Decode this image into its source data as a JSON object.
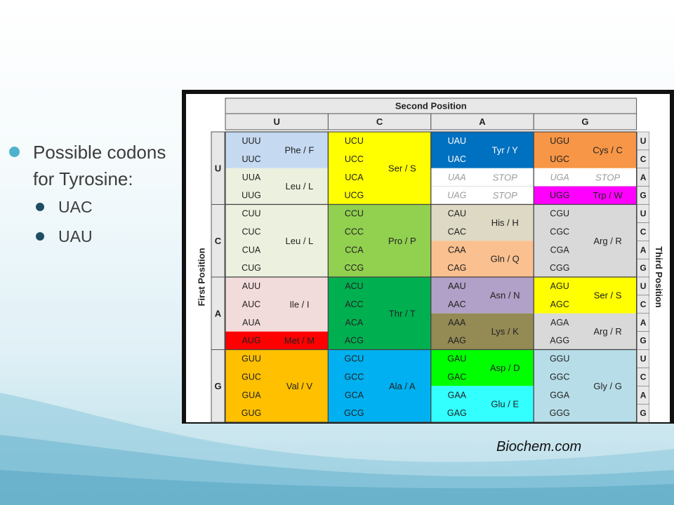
{
  "bullets": {
    "main": "Possible codons for Tyrosine:",
    "subs": [
      "UAC",
      "UAU"
    ]
  },
  "credit": "Biochem.com",
  "table": {
    "second_position_label": "Second Position",
    "first_position_label": "First Position",
    "third_position_label": "Third Position",
    "bases": [
      "U",
      "C",
      "A",
      "G"
    ],
    "colors": {
      "light_blue": "#c5d9f1",
      "pale_green": "#ebf1de",
      "pale_pink": "#f2dcdb",
      "red": "#ff0000",
      "orange_yellow": "#ffc000",
      "yellow": "#ffff00",
      "light_green": "#92d050",
      "green": "#00b050",
      "sky_blue": "#00b0f0",
      "navy": "#0070c0",
      "white": "#ffffff",
      "tan": "#ddd9c4",
      "peach": "#fac090",
      "lavender": "#b1a0c7",
      "olive": "#948a54",
      "bright_green": "#00ff00",
      "cyan": "#33ffff",
      "orange": "#f79646",
      "magenta": "#ff00ff",
      "light_gray": "#d9d9d9",
      "pale_blue": "#b7dee8"
    },
    "blocks": [
      [
        {
          "codons": [
            "UUU",
            "UUC",
            "UUA",
            "UUG"
          ],
          "groups": [
            {
              "rows": 2,
              "label": "Phe / F",
              "color": "#c5d9f1"
            },
            {
              "rows": 2,
              "label": "Leu / L",
              "color": "#ebf1de"
            }
          ]
        },
        {
          "codons": [
            "UCU",
            "UCC",
            "UCA",
            "UCG"
          ],
          "groups": [
            {
              "rows": 4,
              "label": "Ser / S",
              "color": "#ffff00"
            }
          ]
        },
        {
          "codons": [
            "UAU",
            "UAC",
            "UAA",
            "UAG"
          ],
          "groups": [
            {
              "rows": 2,
              "label": "Tyr / Y",
              "color": "#0070c0"
            },
            {
              "rows": 1,
              "label": "STOP",
              "color": "#ffffff",
              "stop": true
            },
            {
              "rows": 1,
              "label": "STOP",
              "color": "#ffffff",
              "stop": true
            }
          ]
        },
        {
          "codons": [
            "UGU",
            "UGC",
            "UGA",
            "UGG"
          ],
          "groups": [
            {
              "rows": 2,
              "label": "Cys / C",
              "color": "#f79646"
            },
            {
              "rows": 1,
              "label": "STOP",
              "color": "#ffffff",
              "stop": true
            },
            {
              "rows": 1,
              "label": "Trp / W",
              "color": "#ff00ff"
            }
          ]
        }
      ],
      [
        {
          "codons": [
            "CUU",
            "CUC",
            "CUA",
            "CUG"
          ],
          "groups": [
            {
              "rows": 4,
              "label": "Leu / L",
              "color": "#ebf1de"
            }
          ]
        },
        {
          "codons": [
            "CCU",
            "CCC",
            "CCA",
            "CCG"
          ],
          "groups": [
            {
              "rows": 4,
              "label": "Pro / P",
              "color": "#92d050"
            }
          ]
        },
        {
          "codons": [
            "CAU",
            "CAC",
            "CAA",
            "CAG"
          ],
          "groups": [
            {
              "rows": 2,
              "label": "His / H",
              "color": "#ddd9c4"
            },
            {
              "rows": 2,
              "label": "Gln / Q",
              "color": "#fac090"
            }
          ]
        },
        {
          "codons": [
            "CGU",
            "CGC",
            "CGA",
            "CGG"
          ],
          "groups": [
            {
              "rows": 4,
              "label": "Arg / R",
              "color": "#d9d9d9"
            }
          ]
        }
      ],
      [
        {
          "codons": [
            "AUU",
            "AUC",
            "AUA",
            "AUG"
          ],
          "groups": [
            {
              "rows": 3,
              "label": "Ile / I",
              "color": "#f2dcdb"
            },
            {
              "rows": 1,
              "label": "Met / M",
              "color": "#ff0000"
            }
          ]
        },
        {
          "codons": [
            "ACU",
            "ACC",
            "ACA",
            "ACG"
          ],
          "groups": [
            {
              "rows": 4,
              "label": "Thr / T",
              "color": "#00b050"
            }
          ]
        },
        {
          "codons": [
            "AAU",
            "AAC",
            "AAA",
            "AAG"
          ],
          "groups": [
            {
              "rows": 2,
              "label": "Asn / N",
              "color": "#b1a0c7"
            },
            {
              "rows": 2,
              "label": "Lys / K",
              "color": "#948a54"
            }
          ]
        },
        {
          "codons": [
            "AGU",
            "AGC",
            "AGA",
            "AGG"
          ],
          "groups": [
            {
              "rows": 2,
              "label": "Ser / S",
              "color": "#ffff00"
            },
            {
              "rows": 2,
              "label": "Arg / R",
              "color": "#d9d9d9"
            }
          ]
        }
      ],
      [
        {
          "codons": [
            "GUU",
            "GUC",
            "GUA",
            "GUG"
          ],
          "groups": [
            {
              "rows": 4,
              "label": "Val / V",
              "color": "#ffc000"
            }
          ]
        },
        {
          "codons": [
            "GCU",
            "GCC",
            "GCA",
            "GCG"
          ],
          "groups": [
            {
              "rows": 4,
              "label": "Ala / A",
              "color": "#00b0f0"
            }
          ]
        },
        {
          "codons": [
            "GAU",
            "GAC",
            "GAA",
            "GAG"
          ],
          "groups": [
            {
              "rows": 2,
              "label": "Asp / D",
              "color": "#00ff00"
            },
            {
              "rows": 2,
              "label": "Glu / E",
              "color": "#33ffff"
            }
          ]
        },
        {
          "codons": [
            "GGU",
            "GGC",
            "GGA",
            "GGG"
          ],
          "groups": [
            {
              "rows": 4,
              "label": "Gly / G",
              "color": "#b7dee8"
            }
          ]
        }
      ]
    ]
  }
}
